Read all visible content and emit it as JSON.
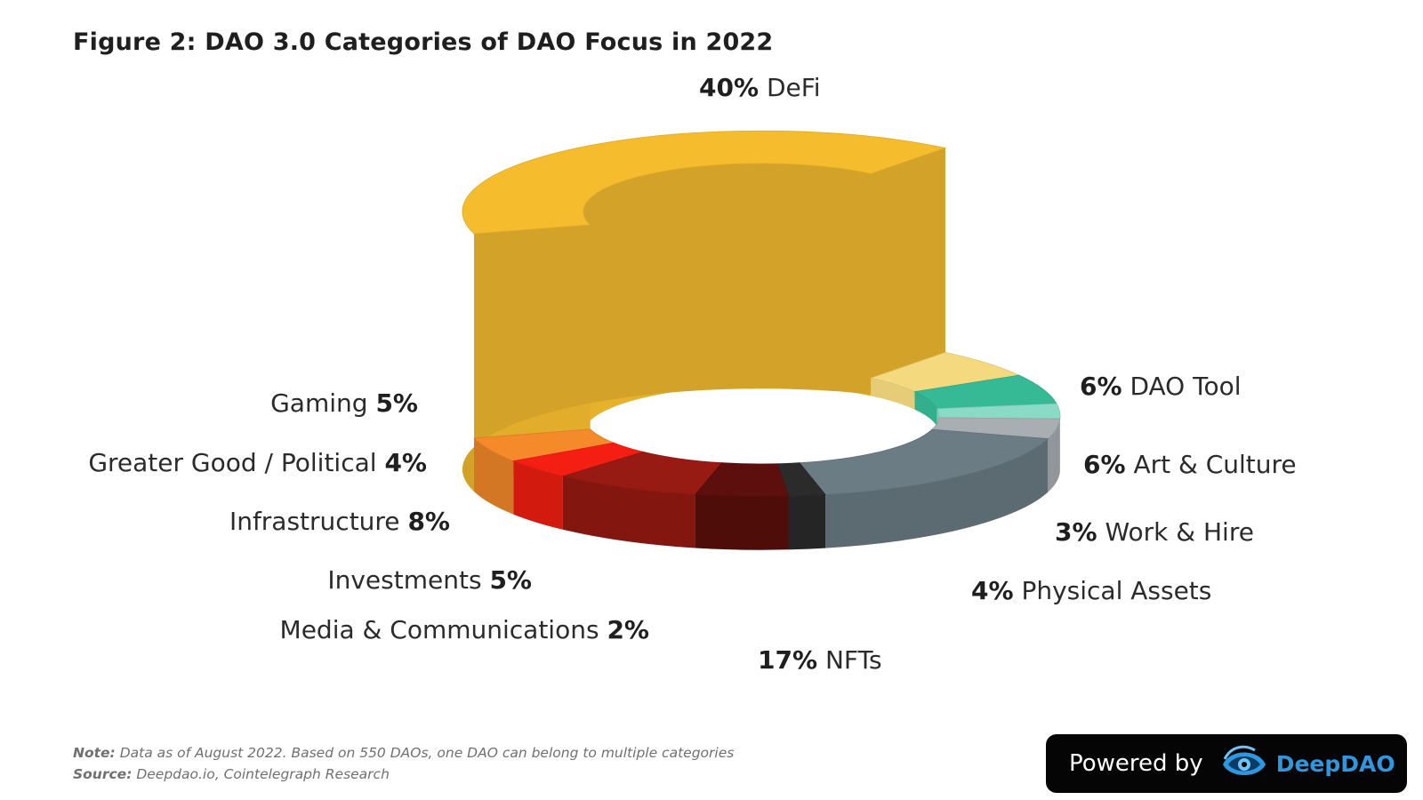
{
  "chart_data": {
    "type": "pie",
    "variant": "3d-donut",
    "title": "Figure 2: DAO 3.0 Categories of DAO Focus in 2022",
    "unit": "%",
    "slices": [
      {
        "name": "DeFi",
        "value": 40,
        "pct_label": "40%",
        "color": "#F5BC2E"
      },
      {
        "name": "DAO Tool",
        "value": 6,
        "pct_label": "6%",
        "color": "#F5D97E"
      },
      {
        "name": "Art & Culture",
        "value": 6,
        "pct_label": "6%",
        "color": "#36BA96"
      },
      {
        "name": "Work & Hire",
        "value": 3,
        "pct_label": "3%",
        "color": "#8ADBC5"
      },
      {
        "name": "Physical Assets",
        "value": 4,
        "pct_label": "4%",
        "color": "#A8AEB2"
      },
      {
        "name": "NFTs",
        "value": 17,
        "pct_label": "17%",
        "color": "#6B7C85"
      },
      {
        "name": "Media & Communications",
        "value": 2,
        "pct_label": "2%",
        "color": "#2B2B2B"
      },
      {
        "name": "Investments",
        "value": 5,
        "pct_label": "5%",
        "color": "#5C0F0C"
      },
      {
        "name": "Infrastructure",
        "value": 8,
        "pct_label": "8%",
        "color": "#981B13"
      },
      {
        "name": "Greater Good / Political",
        "value": 4,
        "pct_label": "4%",
        "color": "#F41E12"
      },
      {
        "name": "Gaming",
        "value": 5,
        "pct_label": "5%",
        "color": "#F58A2A"
      }
    ]
  },
  "footer": {
    "note_label": "Note:",
    "note_text": "Data as of August 2022. Based on 550 DAOs, one DAO can belong to multiple categories",
    "source_label": "Source:",
    "source_text": "Deepdao.io, Cointelegraph Research"
  },
  "branding": {
    "powered_by": "Powered by",
    "name": "DeepDAO",
    "logo_icon": "deepdao-logo-icon",
    "name_color": "#2F97E0"
  }
}
